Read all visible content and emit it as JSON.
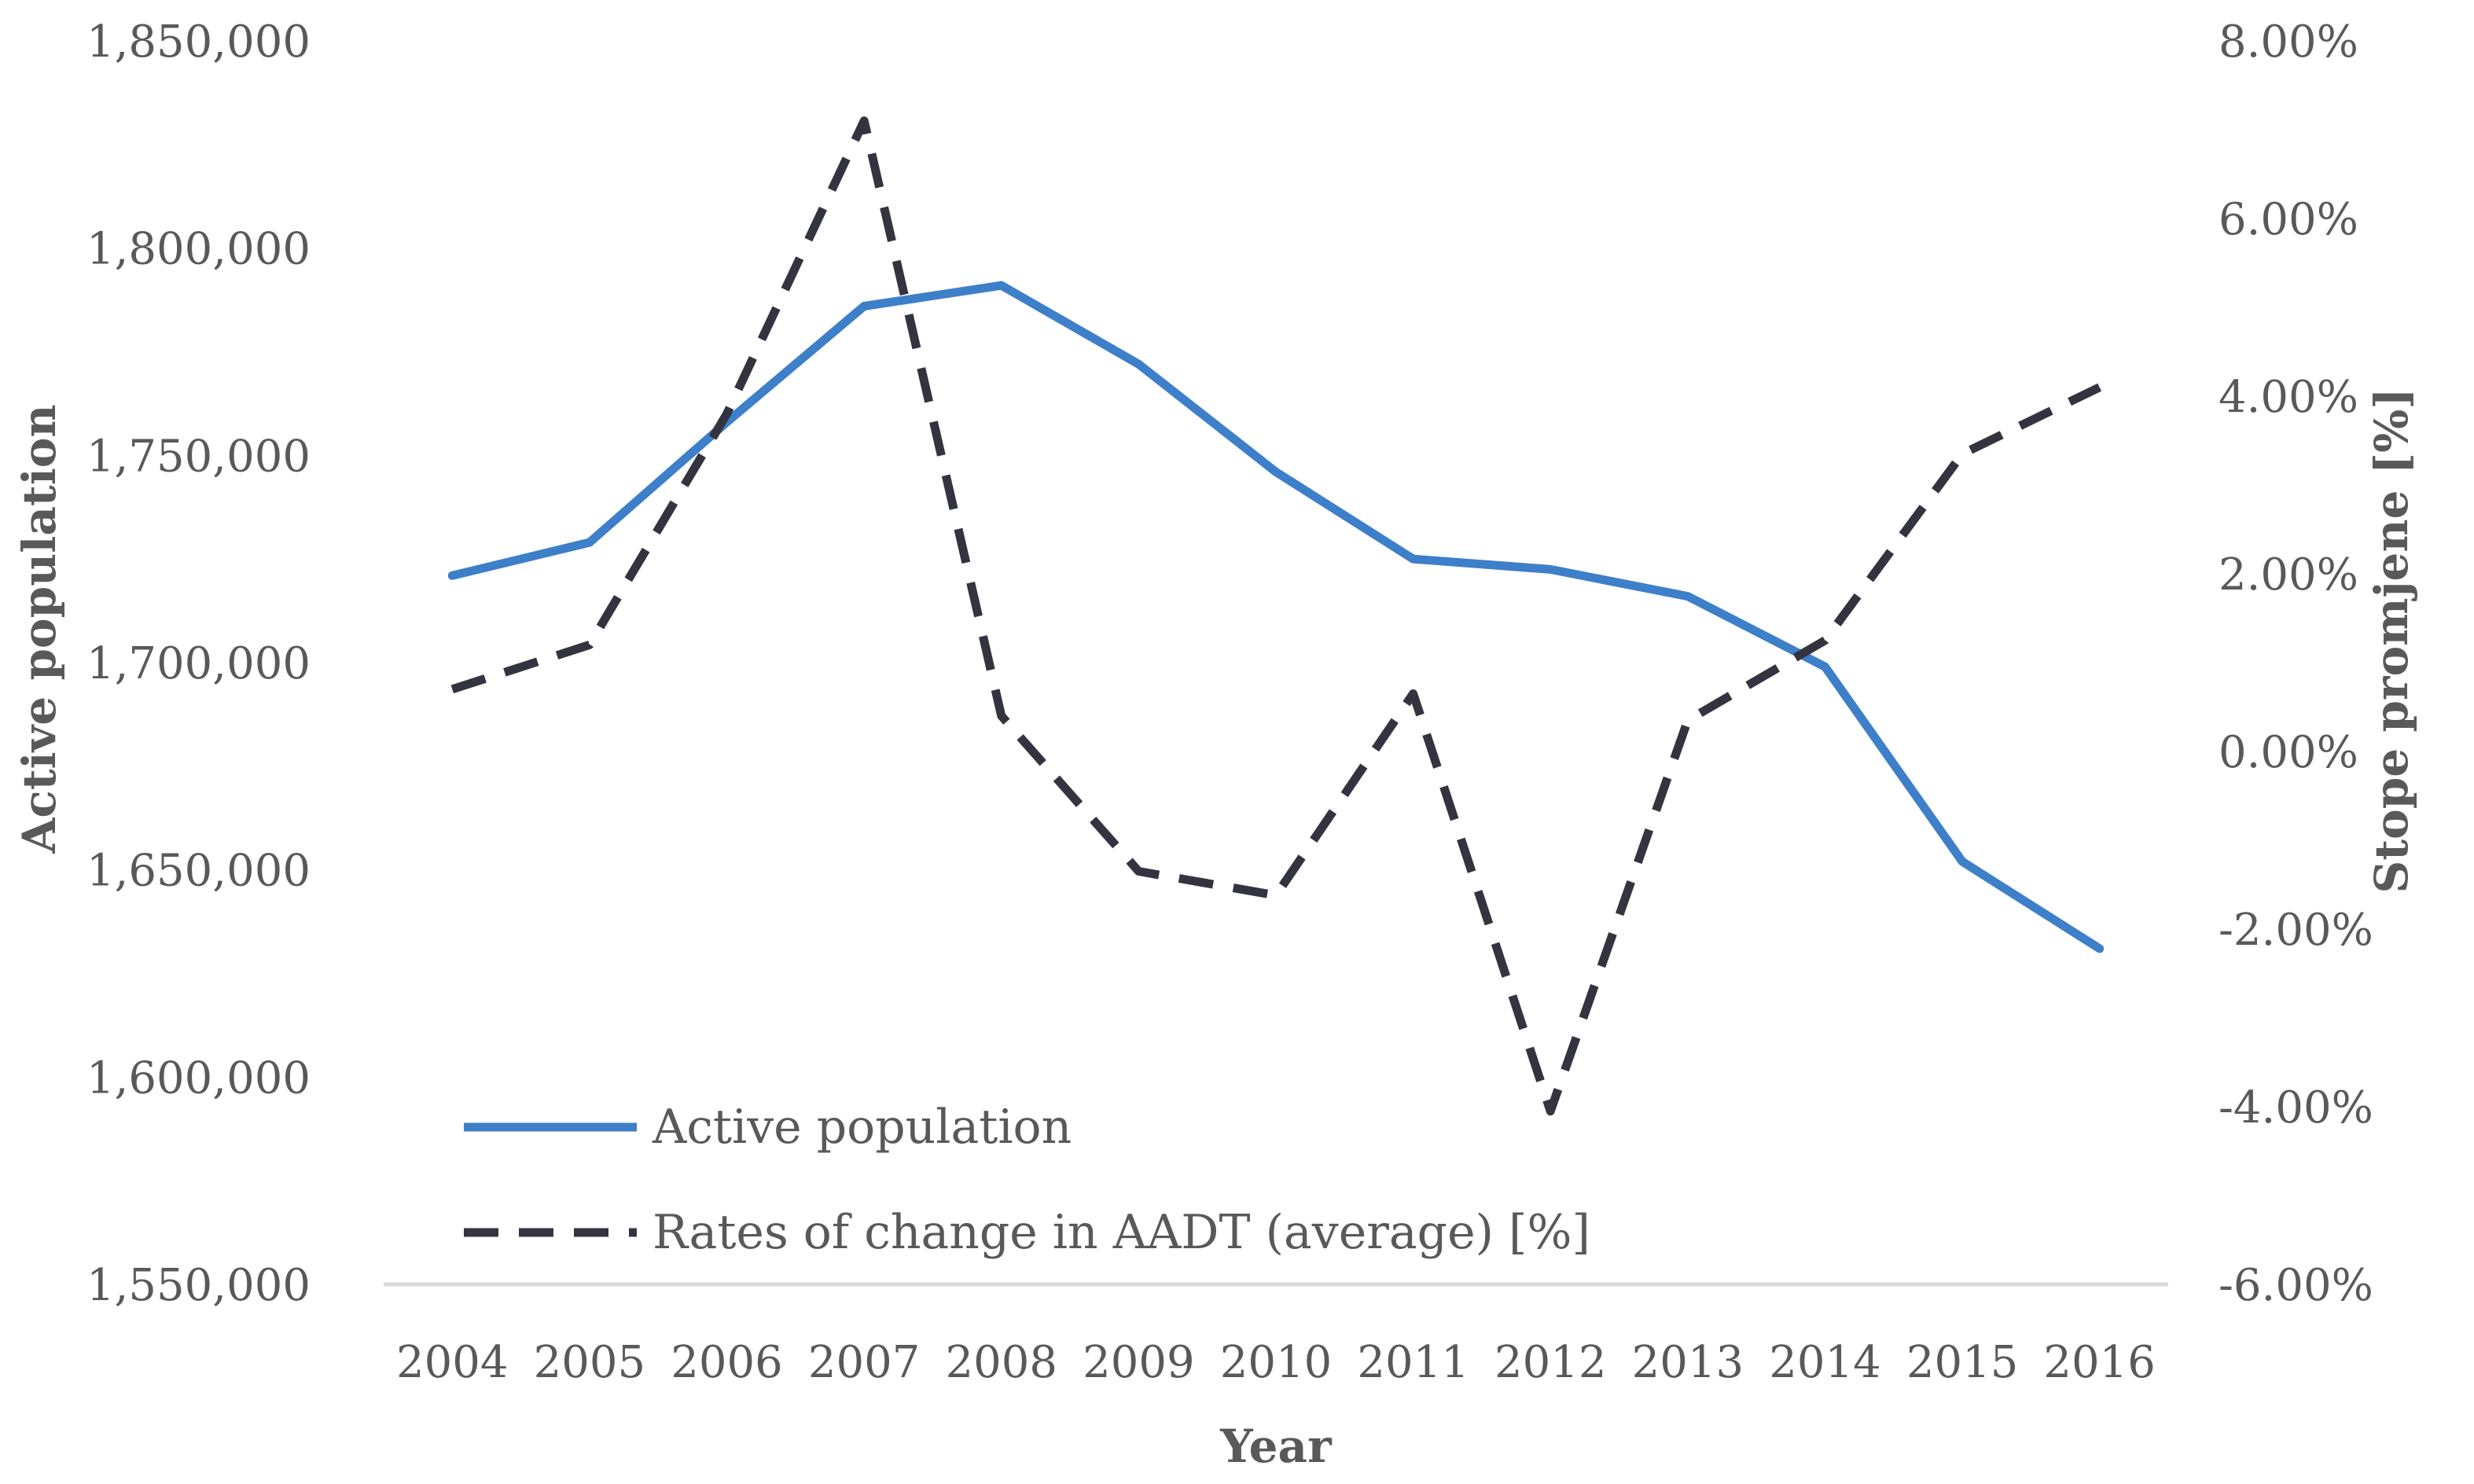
{
  "chart_data": {
    "type": "line",
    "title": "",
    "xlabel": "Year",
    "ylabel": "Active population",
    "y2label": "Stope promjene [%]",
    "categories": [
      "2004",
      "2005",
      "2006",
      "2007",
      "2008",
      "2009",
      "2010",
      "2011",
      "2012",
      "2013",
      "2014",
      "2015",
      "2016"
    ],
    "ylim": [
      1550000,
      1850000
    ],
    "y2lim": [
      -6,
      8
    ],
    "yticks": [
      "1,550,000",
      "1,600,000",
      "1,650,000",
      "1,700,000",
      "1,750,000",
      "1,800,000",
      "1,850,000"
    ],
    "y2ticks": [
      "-6.00%",
      "-4.00%",
      "-2.00%",
      "0.00%",
      "2.00%",
      "4.00%",
      "6.00%",
      "8.00%"
    ],
    "legend_position": "bottom-left",
    "series": [
      {
        "name": "Active population",
        "axis": "left",
        "color": "#3d7fc9",
        "style": "solid",
        "values": [
          1721000,
          1729000,
          1758000,
          1786000,
          1791000,
          1772000,
          1746000,
          1725000,
          1722500,
          1716000,
          1699000,
          1652000,
          1631000
        ]
      },
      {
        "name": "Rates of change in AADT (average) [%]",
        "axis": "right",
        "color": "#33343f",
        "style": "dashed",
        "values": [
          0.7,
          1.2,
          3.8,
          7.1,
          0.4,
          -1.35,
          -1.62,
          0.65,
          -4.05,
          0.35,
          1.25,
          3.35,
          4.1
        ]
      }
    ]
  }
}
